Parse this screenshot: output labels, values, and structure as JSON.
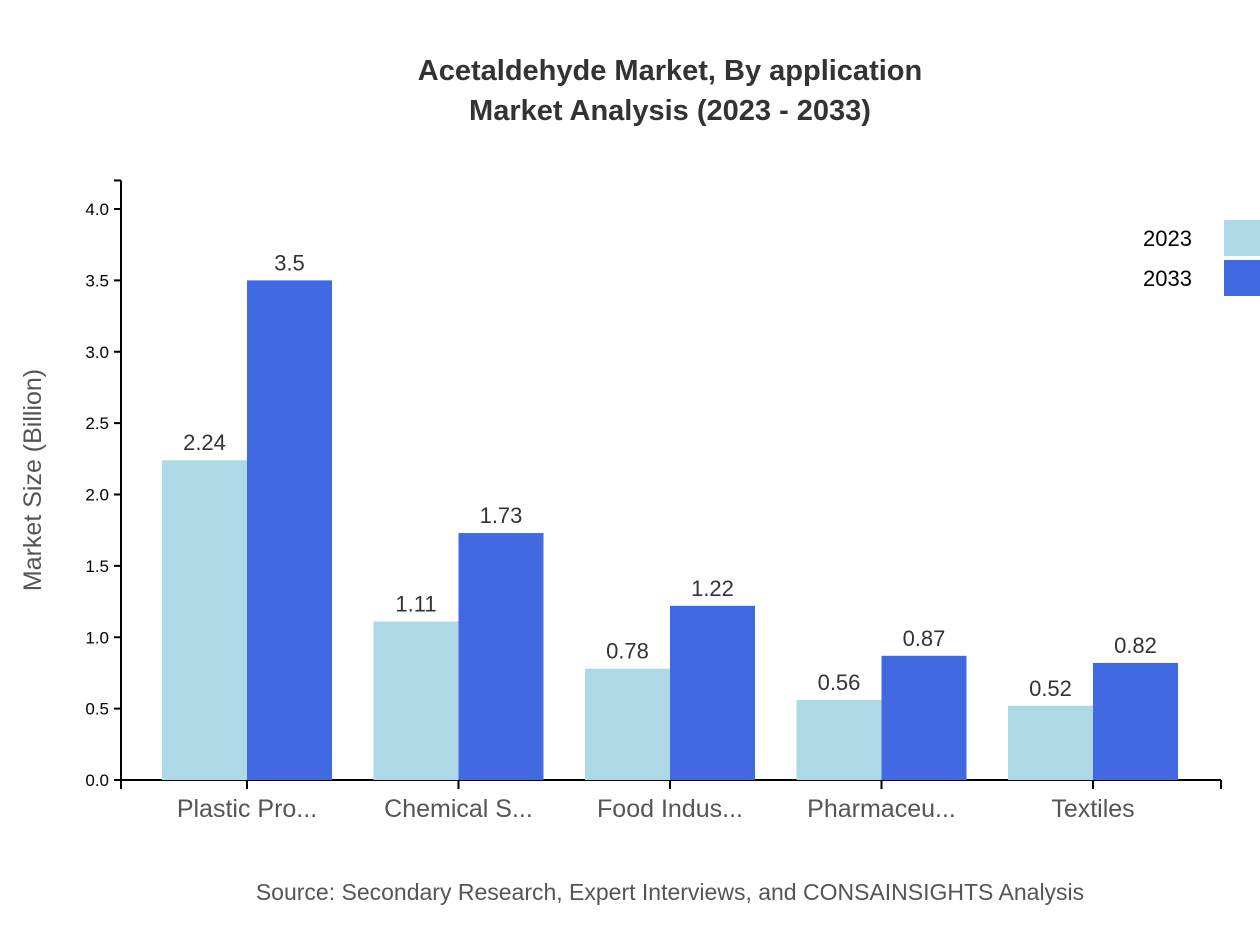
{
  "chart_data": {
    "type": "bar",
    "title": [
      "Acetaldehyde Market, By application",
      "Market Analysis (2023 - 2033)"
    ],
    "xlabel": "",
    "ylabel": "Market Size (Billion)",
    "ylim": [
      0,
      4.2
    ],
    "yticks": [
      "0.0",
      "0.5",
      "1.0",
      "1.5",
      "2.0",
      "2.5",
      "3.0",
      "3.5",
      "4.0"
    ],
    "categories": [
      "Plastic Pro...",
      "Chemical S...",
      "Food Indus...",
      "Pharmaceu...",
      "Textiles"
    ],
    "series": [
      {
        "name": "2023",
        "color": "#add8e6",
        "values": [
          2.24,
          1.11,
          0.78,
          0.56,
          0.52
        ]
      },
      {
        "name": "2033",
        "color": "#4169e1",
        "values": [
          3.5,
          1.73,
          1.22,
          0.87,
          0.82
        ]
      }
    ],
    "legend_position": "top-right",
    "grid": false,
    "source": "Source: Secondary Research, Expert Interviews, and CONSAINSIGHTS Analysis"
  }
}
